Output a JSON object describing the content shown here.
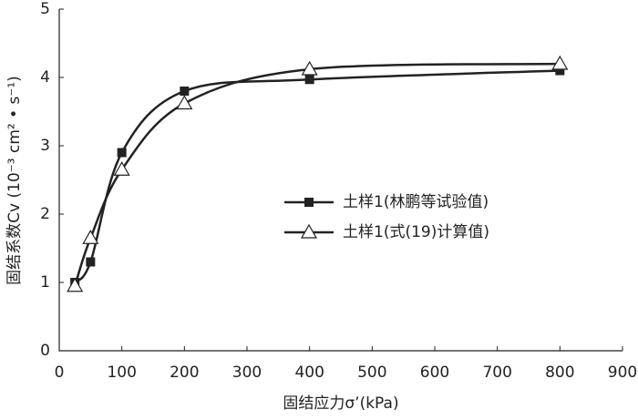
{
  "chart_data": {
    "type": "line",
    "xlabel": "固结应力σ’(kPa)",
    "ylabel": "固结系数Cv (10⁻³ cm² • s⁻¹)",
    "x": [
      25,
      50,
      100,
      200,
      400,
      800
    ],
    "series": [
      {
        "name": "土样1(林鹏等试验值)",
        "color": "#222222",
        "marker": "square",
        "values": [
          1.0,
          1.3,
          2.9,
          3.8,
          3.97,
          4.1
        ]
      },
      {
        "name": "土样1(式(19)计算值)",
        "color": "#222222",
        "marker": "triangle",
        "values": [
          0.95,
          1.65,
          2.65,
          3.62,
          4.12,
          4.2
        ]
      }
    ],
    "xlim": [
      0,
      900
    ],
    "xticks": [
      0,
      100,
      200,
      300,
      400,
      500,
      600,
      700,
      800,
      900
    ],
    "ylim": [
      0,
      5
    ],
    "yticks": [
      0,
      1,
      2,
      3,
      4,
      5
    ],
    "grid": false,
    "legend": "right"
  }
}
